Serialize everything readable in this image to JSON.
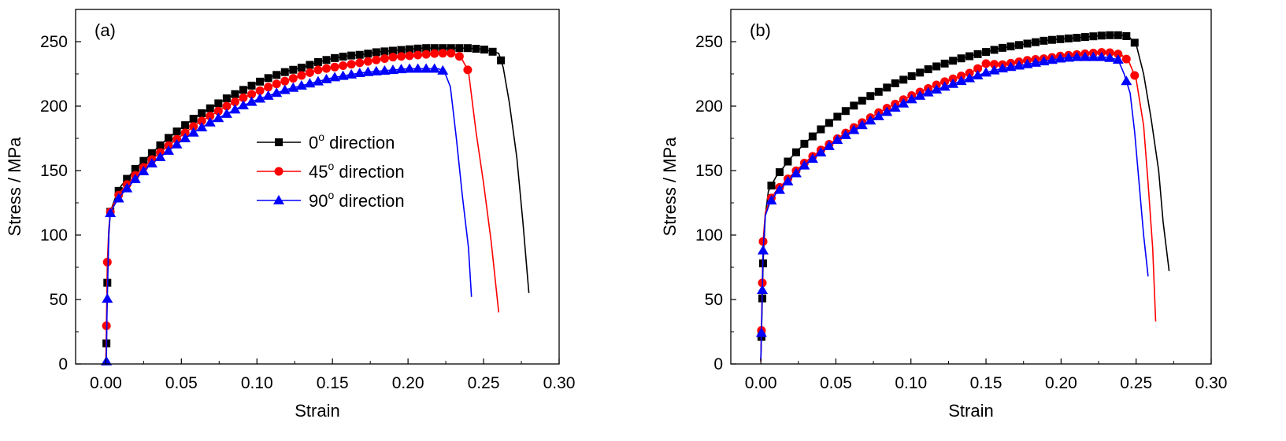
{
  "chart_data": [
    {
      "type": "line",
      "panel_label": "(a)",
      "xlabel": "Strain",
      "ylabel": "Stress / MPa",
      "xlim": [
        -0.02,
        0.3
      ],
      "ylim": [
        0,
        275
      ],
      "xticks": [
        "0.00",
        "0.05",
        "0.10",
        "0.15",
        "0.20",
        "0.25",
        "0.30"
      ],
      "xtick_values": [
        0,
        0.05,
        0.1,
        0.15,
        0.2,
        0.25,
        0.3
      ],
      "yticks": [
        "0",
        "50",
        "100",
        "150",
        "200",
        "250"
      ],
      "ytick_values": [
        0,
        50,
        100,
        150,
        200,
        250
      ],
      "legend": {
        "position": "center",
        "show": true
      },
      "series": [
        {
          "name_base": "0",
          "name_sup": "o",
          "name_rest": " direction",
          "color": "#000000",
          "marker": "square",
          "curve": [
            [
              0,
              0
            ],
            [
              0.0005,
              20
            ],
            [
              0.001,
              63
            ],
            [
              0.002,
              100
            ],
            [
              0.003,
              118
            ],
            [
              0.006,
              128
            ],
            [
              0.01,
              138
            ],
            [
              0.02,
              152
            ],
            [
              0.03,
              163
            ],
            [
              0.04,
              174
            ],
            [
              0.05,
              183
            ],
            [
              0.06,
              192
            ],
            [
              0.07,
              199
            ],
            [
              0.08,
              206
            ],
            [
              0.09,
              212
            ],
            [
              0.1,
              218
            ],
            [
              0.11,
              223
            ],
            [
              0.12,
              227
            ],
            [
              0.13,
              230
            ],
            [
              0.14,
              234
            ],
            [
              0.15,
              237
            ],
            [
              0.16,
              239
            ],
            [
              0.17,
              240
            ],
            [
              0.18,
              242
            ],
            [
              0.19,
              243
            ],
            [
              0.2,
              244
            ],
            [
              0.21,
              245
            ],
            [
              0.22,
              245
            ],
            [
              0.23,
              245
            ],
            [
              0.24,
              245
            ],
            [
              0.25,
              244
            ],
            [
              0.26,
              241
            ],
            [
              0.263,
              230
            ],
            [
              0.267,
              203
            ],
            [
              0.272,
              160
            ],
            [
              0.276,
              110
            ],
            [
              0.28,
              55
            ]
          ],
          "marker_start": 0.003,
          "marker_end": 0.263,
          "marker_step": 0.0055
        },
        {
          "name_base": "45",
          "name_sup": "o",
          "name_rest": " direction",
          "color": "#ff0000",
          "marker": "circle",
          "curve": [
            [
              0,
              0
            ],
            [
              0.0005,
              37
            ],
            [
              0.001,
              79
            ],
            [
              0.002,
              105
            ],
            [
              0.003,
              118
            ],
            [
              0.006,
              126
            ],
            [
              0.01,
              134
            ],
            [
              0.02,
              147
            ],
            [
              0.03,
              158
            ],
            [
              0.04,
              168
            ],
            [
              0.05,
              177
            ],
            [
              0.06,
              186
            ],
            [
              0.07,
              193
            ],
            [
              0.08,
              200
            ],
            [
              0.09,
              206
            ],
            [
              0.1,
              211
            ],
            [
              0.11,
              216
            ],
            [
              0.12,
              220
            ],
            [
              0.13,
              224
            ],
            [
              0.14,
              228
            ],
            [
              0.15,
              230
            ],
            [
              0.16,
              232
            ],
            [
              0.17,
              234
            ],
            [
              0.18,
              236
            ],
            [
              0.19,
              238
            ],
            [
              0.2,
              239
            ],
            [
              0.21,
              240
            ],
            [
              0.22,
              241
            ],
            [
              0.23,
              241
            ],
            [
              0.235,
              238
            ],
            [
              0.24,
              227
            ],
            [
              0.245,
              180
            ],
            [
              0.25,
              140
            ],
            [
              0.255,
              95
            ],
            [
              0.26,
              40
            ]
          ],
          "marker_start": 0.003,
          "marker_end": 0.2405,
          "marker_step": 0.0055
        },
        {
          "name_base": "90",
          "name_sup": "o",
          "name_rest": " direction",
          "color": "#0000ff",
          "marker": "triangle",
          "curve": [
            [
              0,
              0
            ],
            [
              0.0004,
              2
            ],
            [
              0.0008,
              40
            ],
            [
              0.002,
              103
            ],
            [
              0.003,
              117
            ],
            [
              0.006,
              124
            ],
            [
              0.01,
              131
            ],
            [
              0.02,
              144
            ],
            [
              0.03,
              155
            ],
            [
              0.04,
              164
            ],
            [
              0.05,
              173
            ],
            [
              0.06,
              181
            ],
            [
              0.07,
              188
            ],
            [
              0.08,
              194
            ],
            [
              0.09,
              200
            ],
            [
              0.1,
              205
            ],
            [
              0.11,
              209
            ],
            [
              0.12,
              213
            ],
            [
              0.13,
              216
            ],
            [
              0.14,
              219
            ],
            [
              0.15,
              222
            ],
            [
              0.16,
              224
            ],
            [
              0.17,
              226
            ],
            [
              0.18,
              227
            ],
            [
              0.19,
              228
            ],
            [
              0.2,
              229
            ],
            [
              0.21,
              229
            ],
            [
              0.22,
              229
            ],
            [
              0.224,
              227
            ],
            [
              0.228,
              215
            ],
            [
              0.232,
              175
            ],
            [
              0.236,
              130
            ],
            [
              0.24,
              90
            ],
            [
              0.242,
              52
            ]
          ],
          "marker_start": 0.003,
          "marker_end": 0.2245,
          "marker_step": 0.0055
        }
      ]
    },
    {
      "type": "line",
      "panel_label": "(b)",
      "xlabel": "Strain",
      "ylabel": "Stress / MPa",
      "xlim": [
        -0.02,
        0.3
      ],
      "ylim": [
        0,
        275
      ],
      "xticks": [
        "0.00",
        "0.05",
        "0.10",
        "0.15",
        "0.20",
        "0.25",
        "0.30"
      ],
      "xtick_values": [
        0,
        0.05,
        0.1,
        0.15,
        0.2,
        0.25,
        0.3
      ],
      "yticks": [
        "0",
        "50",
        "100",
        "150",
        "200",
        "250"
      ],
      "ytick_values": [
        0,
        50,
        100,
        150,
        200,
        250
      ],
      "legend": {
        "show": false
      },
      "series": [
        {
          "name_base": "0",
          "name_sup": "o",
          "name_rest": " direction",
          "color": "#000000",
          "marker": "square",
          "curve": [
            [
              0,
              2
            ],
            [
              0.0008,
              40
            ],
            [
              0.0015,
              78
            ],
            [
              0.003,
              115
            ],
            [
              0.005,
              134
            ],
            [
              0.01,
              145
            ],
            [
              0.02,
              160
            ],
            [
              0.03,
              172
            ],
            [
              0.04,
              182
            ],
            [
              0.05,
              191
            ],
            [
              0.06,
              199
            ],
            [
              0.07,
              206
            ],
            [
              0.08,
              212
            ],
            [
              0.09,
              218
            ],
            [
              0.1,
              223
            ],
            [
              0.11,
              228
            ],
            [
              0.12,
              232
            ],
            [
              0.13,
              236
            ],
            [
              0.14,
              239
            ],
            [
              0.15,
              242
            ],
            [
              0.16,
              245
            ],
            [
              0.17,
              247
            ],
            [
              0.18,
              249
            ],
            [
              0.19,
              251
            ],
            [
              0.2,
              252
            ],
            [
              0.21,
              253
            ],
            [
              0.22,
              254
            ],
            [
              0.23,
              255
            ],
            [
              0.24,
              255
            ],
            [
              0.245,
              254
            ],
            [
              0.25,
              248
            ],
            [
              0.255,
              225
            ],
            [
              0.26,
              190
            ],
            [
              0.265,
              150
            ],
            [
              0.268,
              110
            ],
            [
              0.272,
              72
            ]
          ],
          "marker_start": 0.0015,
          "marker_end": 0.251,
          "marker_step": 0.0055
        },
        {
          "name_base": "45",
          "name_sup": "o",
          "name_rest": " direction",
          "color": "#ff0000",
          "marker": "circle",
          "curve": [
            [
              0,
              2
            ],
            [
              0.0008,
              50
            ],
            [
              0.0015,
              95
            ],
            [
              0.003,
              117
            ],
            [
              0.006,
              127
            ],
            [
              0.01,
              134
            ],
            [
              0.02,
              146
            ],
            [
              0.03,
              157
            ],
            [
              0.04,
              166
            ],
            [
              0.05,
              174
            ],
            [
              0.06,
              182
            ],
            [
              0.07,
              189
            ],
            [
              0.08,
              196
            ],
            [
              0.09,
              202
            ],
            [
              0.1,
              208
            ],
            [
              0.11,
              213
            ],
            [
              0.12,
              218
            ],
            [
              0.13,
              222
            ],
            [
              0.14,
              226
            ],
            [
              0.15,
              233
            ],
            [
              0.16,
              232
            ],
            [
              0.17,
              234
            ],
            [
              0.18,
              236
            ],
            [
              0.19,
              237
            ],
            [
              0.2,
              239
            ],
            [
              0.21,
              240
            ],
            [
              0.22,
              241
            ],
            [
              0.23,
              242
            ],
            [
              0.24,
              240
            ],
            [
              0.245,
              235
            ],
            [
              0.25,
              221
            ],
            [
              0.255,
              185
            ],
            [
              0.258,
              140
            ],
            [
              0.261,
              90
            ],
            [
              0.263,
              33
            ]
          ],
          "marker_start": 0.0015,
          "marker_end": 0.2505,
          "marker_step": 0.0055
        },
        {
          "name_base": "90",
          "name_sup": "o",
          "name_rest": " direction",
          "color": "#0000ff",
          "marker": "triangle",
          "curve": [
            [
              0,
              3
            ],
            [
              0.0008,
              45
            ],
            [
              0.0015,
              88
            ],
            [
              0.003,
              115
            ],
            [
              0.006,
              125
            ],
            [
              0.01,
              132
            ],
            [
              0.02,
              144
            ],
            [
              0.03,
              155
            ],
            [
              0.04,
              164
            ],
            [
              0.05,
              173
            ],
            [
              0.06,
              180
            ],
            [
              0.07,
              187
            ],
            [
              0.08,
              193
            ],
            [
              0.09,
              199
            ],
            [
              0.1,
              205
            ],
            [
              0.11,
              210
            ],
            [
              0.12,
              214
            ],
            [
              0.13,
              218
            ],
            [
              0.14,
              222
            ],
            [
              0.15,
              226
            ],
            [
              0.16,
              229
            ],
            [
              0.17,
              231
            ],
            [
              0.18,
              233
            ],
            [
              0.19,
              235
            ],
            [
              0.2,
              237
            ],
            [
              0.21,
              238
            ],
            [
              0.22,
              238
            ],
            [
              0.23,
              238
            ],
            [
              0.238,
              236
            ],
            [
              0.242,
              225
            ],
            [
              0.246,
              210
            ],
            [
              0.249,
              180
            ],
            [
              0.252,
              140
            ],
            [
              0.255,
              100
            ],
            [
              0.258,
              68
            ]
          ],
          "marker_start": 0.0015,
          "marker_end": 0.2465,
          "marker_step": 0.0055
        }
      ]
    }
  ]
}
